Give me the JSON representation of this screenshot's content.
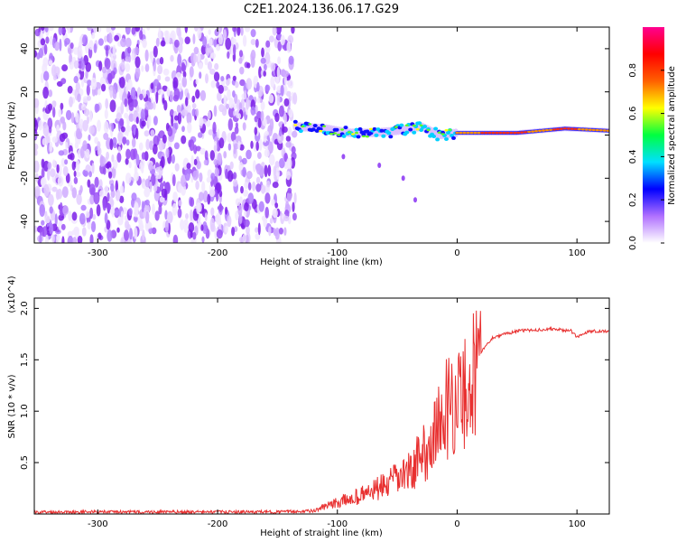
{
  "title": "C2E1.2024.136.06.17.G29",
  "chart_data": [
    {
      "type": "heatmap",
      "xlabel": "Height of straight line (km)",
      "ylabel": "Frequency (Hz)",
      "xlim": [
        -353,
        127
      ],
      "ylim": [
        -50,
        50
      ],
      "xticks": [
        -300,
        -200,
        -100,
        0,
        100
      ],
      "yticks": [
        -40,
        -20,
        0,
        20,
        40
      ],
      "colorbar": {
        "label": "Normalized spectral amplitude",
        "range": [
          0,
          1
        ],
        "ticks": [
          "0.0",
          "0.2",
          "0.4",
          "0.6",
          "0.8"
        ],
        "colors": [
          "#ffffff",
          "#b070ff",
          "#0000ff",
          "#00e0ff",
          "#00ff40",
          "#ffff00",
          "#ff6000",
          "#ff0000",
          "#ff0090"
        ]
      },
      "noise_region_x": [
        -353,
        -135
      ],
      "signal_points": [
        {
          "x": -135,
          "y": 4
        },
        {
          "x": -110,
          "y": 3
        },
        {
          "x": -90,
          "y": 1
        },
        {
          "x": -70,
          "y": 1
        },
        {
          "x": -50,
          "y": 2
        },
        {
          "x": -30,
          "y": 4
        },
        {
          "x": -15,
          "y": 0
        },
        {
          "x": 0,
          "y": 1
        },
        {
          "x": 20,
          "y": 1
        },
        {
          "x": 50,
          "y": 1
        },
        {
          "x": 90,
          "y": 3
        },
        {
          "x": 127,
          "y": 2
        }
      ],
      "branch_points": [
        {
          "x": -95,
          "y": -10
        },
        {
          "x": -65,
          "y": -14
        },
        {
          "x": -45,
          "y": -20
        },
        {
          "x": -35,
          "y": -30
        }
      ]
    },
    {
      "type": "line",
      "xlabel": "Height of straight line (km)",
      "ylabel": "SNR (10 * v/v)",
      "multiplier": "(x10^4)",
      "xlim": [
        -353,
        127
      ],
      "ylim": [
        0,
        2.1
      ],
      "xticks": [
        -300,
        -200,
        -100,
        0,
        100
      ],
      "yticks": [
        "0.5",
        "1.0",
        "1.5",
        "2.0"
      ],
      "series": [
        {
          "color": "#e83030",
          "x": [
            -353,
            -300,
            -200,
            -150,
            -120,
            -110,
            -100,
            -80,
            -60,
            -40,
            -25,
            -15,
            -10,
            -5,
            5,
            10,
            20,
            30,
            50,
            80,
            95,
            100,
            110,
            127
          ],
          "y": [
            0.02,
            0.02,
            0.02,
            0.02,
            0.03,
            0.08,
            0.12,
            0.2,
            0.3,
            0.45,
            0.7,
            0.95,
            1.1,
            1.2,
            1.25,
            1.4,
            1.58,
            1.72,
            1.78,
            1.8,
            1.78,
            1.72,
            1.78,
            1.78
          ]
        }
      ]
    }
  ]
}
